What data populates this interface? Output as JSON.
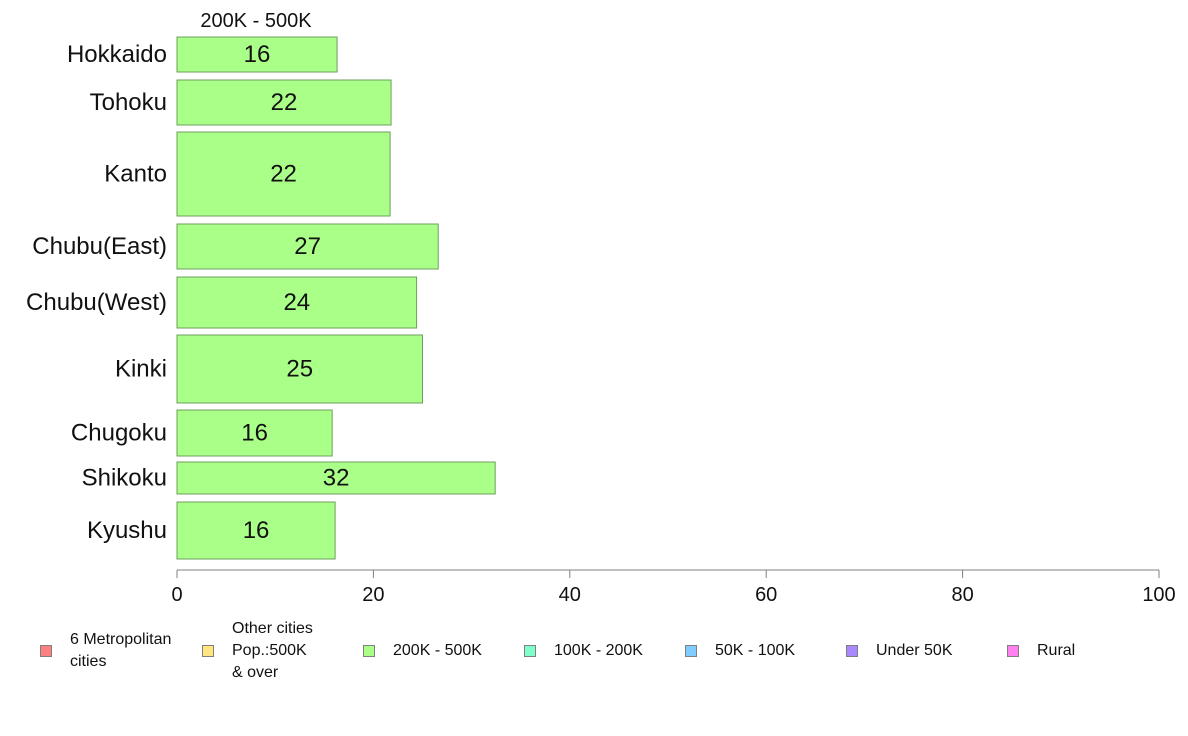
{
  "chart_data": {
    "type": "bar",
    "orientation": "horizontal",
    "panel_title": "200K - 500K",
    "categories": [
      "Hokkaido",
      "Tohoku",
      "Kanto",
      "Chubu(East)",
      "Chubu(West)",
      "Kinki",
      "Chugoku",
      "Shikoku",
      "Kyushu"
    ],
    "values": [
      16.3,
      21.8,
      21.7,
      26.6,
      24.4,
      25.0,
      15.8,
      32.4,
      16.1
    ],
    "data_labels": [
      "16",
      "22",
      "22",
      "27",
      "24",
      "25",
      "16",
      "32",
      "16"
    ],
    "bar_thickness_note": "variable (proportional to sample size)",
    "xlim": [
      0,
      100
    ],
    "xticks": [
      0,
      20,
      40,
      60,
      80,
      100
    ],
    "xtick_labels": [
      "0",
      "20",
      "40",
      "60",
      "80",
      "100"
    ],
    "bar_color": "#aaff88",
    "bar_stroke": "#6c9f5c",
    "axis_color": "#808080",
    "grid": false,
    "legend_placement": "bottom",
    "legend": [
      {
        "label": "6 Metropolitan\n cities",
        "color": "#ff8080"
      },
      {
        "label": "Other cities\nPop.:500K\n & over",
        "color": "#ffe680"
      },
      {
        "label": "200K - 500K",
        "color": "#aaff88"
      },
      {
        "label": "100K - 200K",
        "color": "#80ffcc"
      },
      {
        "label": "50K - 100K",
        "color": "#80ccff"
      },
      {
        "label": "Under 50K",
        "color": "#aa88ff"
      },
      {
        "label": "Rural",
        "color": "#ff80ee"
      }
    ]
  }
}
